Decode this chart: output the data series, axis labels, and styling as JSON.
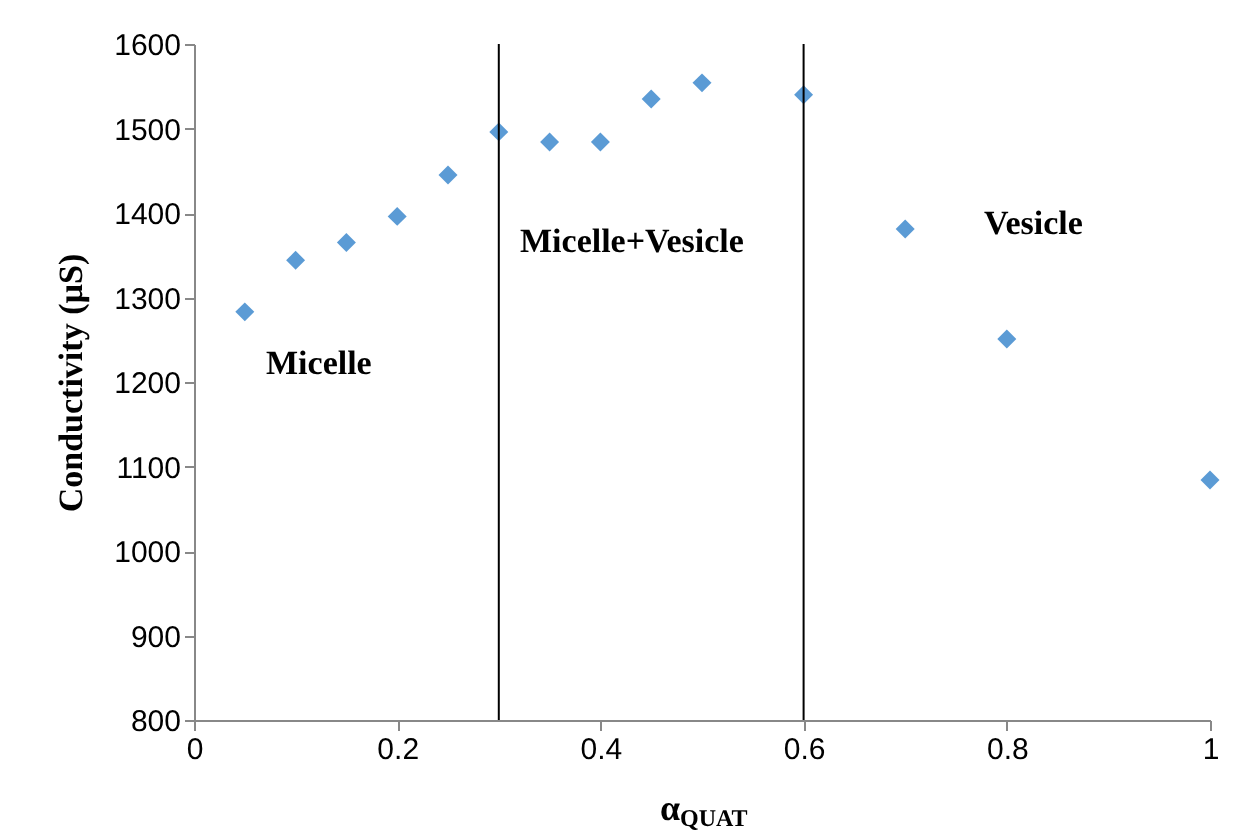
{
  "chart_data": {
    "type": "scatter",
    "xlabel": "α$_{QUAT}$",
    "ylabel": "Conductivity (µS)",
    "x": [
      0.05,
      0.1,
      0.15,
      0.2,
      0.25,
      0.3,
      0.35,
      0.4,
      0.45,
      0.5,
      0.6,
      0.7,
      0.8,
      1
    ],
    "series": [
      {
        "color": "#5b9bd5",
        "values": [
          1283,
          1344,
          1365,
          1396,
          1445,
          1496,
          1484,
          1484,
          1535,
          1554,
          1540,
          1381,
          1251,
          1084
        ]
      }
    ],
    "xlim": [
      0,
      1
    ],
    "xticks": [
      0,
      0.2,
      0.4,
      0.6,
      0.8,
      1
    ],
    "ylim": [
      800,
      1600
    ],
    "yticks": [
      800,
      900,
      1000,
      1100,
      1200,
      1300,
      1400,
      1500,
      1600
    ],
    "marker": "diamond",
    "grid": false,
    "ref_lines": [
      {
        "axis": "x",
        "value": 0.3,
        "color": "#000000"
      },
      {
        "axis": "x",
        "value": 0.6,
        "color": "#000000"
      }
    ],
    "annotations": [
      "Micelle",
      "Micelle+Vesicle",
      "Vesicle"
    ]
  }
}
